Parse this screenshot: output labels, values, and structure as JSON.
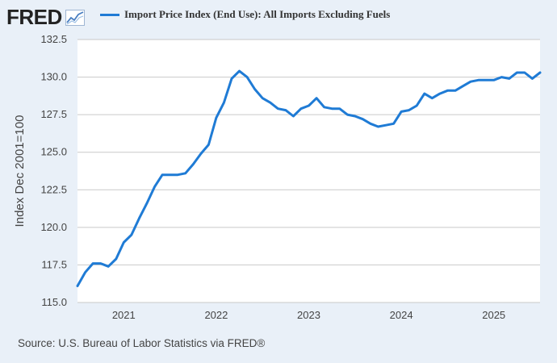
{
  "brand": {
    "logo_text": "FRED",
    "logo_icon": "trend-chart-icon",
    "logo_icon_color": "#4a7fc1"
  },
  "source": "Source: U.S. Bureau of Labor Statistics via FRED®",
  "colors": {
    "series": "#1f7bd5",
    "grid": "#c9c9c9",
    "background": "#e9f0f8",
    "plot": "#ffffff"
  },
  "chart_data": {
    "type": "line",
    "ylabel": "Index Dec 2001=100",
    "xlabel": "",
    "ylim": [
      115.0,
      132.5
    ],
    "yticks": [
      "115.0",
      "117.5",
      "120.0",
      "122.5",
      "125.0",
      "127.5",
      "130.0",
      "132.5"
    ],
    "xticks": [
      "2021",
      "2022",
      "2023",
      "2024",
      "2025"
    ],
    "grid": "horizontal",
    "legend_position": "top",
    "series": [
      {
        "name": "Import Price Index (End Use): All Imports Excluding Fuels",
        "x": [
          "2020-07",
          "2020-08",
          "2020-09",
          "2020-10",
          "2020-11",
          "2020-12",
          "2021-01",
          "2021-02",
          "2021-03",
          "2021-04",
          "2021-05",
          "2021-06",
          "2021-07",
          "2021-08",
          "2021-09",
          "2021-10",
          "2021-11",
          "2021-12",
          "2022-01",
          "2022-02",
          "2022-03",
          "2022-04",
          "2022-05",
          "2022-06",
          "2022-07",
          "2022-08",
          "2022-09",
          "2022-10",
          "2022-11",
          "2022-12",
          "2023-01",
          "2023-02",
          "2023-03",
          "2023-04",
          "2023-05",
          "2023-06",
          "2023-07",
          "2023-08",
          "2023-09",
          "2023-10",
          "2023-11",
          "2023-12",
          "2024-01",
          "2024-02",
          "2024-03",
          "2024-04",
          "2024-05",
          "2024-06",
          "2024-07",
          "2024-08",
          "2024-09",
          "2024-10",
          "2024-11",
          "2024-12",
          "2025-01",
          "2025-02",
          "2025-03",
          "2025-04",
          "2025-05",
          "2025-06",
          "2025-07"
        ],
        "values": [
          116.1,
          117.0,
          117.6,
          117.6,
          117.4,
          117.9,
          119.0,
          119.5,
          120.6,
          121.6,
          122.7,
          123.5,
          123.5,
          123.5,
          123.6,
          124.2,
          124.9,
          125.5,
          127.3,
          128.3,
          129.9,
          130.4,
          130.0,
          129.2,
          128.6,
          128.3,
          127.9,
          127.8,
          127.4,
          127.9,
          128.1,
          128.6,
          128.0,
          127.9,
          127.9,
          127.5,
          127.4,
          127.2,
          126.9,
          126.7,
          126.8,
          126.9,
          127.7,
          127.8,
          128.1,
          128.9,
          128.6,
          128.9,
          129.1,
          129.1,
          129.4,
          129.7,
          129.8,
          129.8,
          129.8,
          130.0,
          129.9,
          130.3,
          130.3,
          129.9,
          130.3
        ]
      }
    ]
  }
}
